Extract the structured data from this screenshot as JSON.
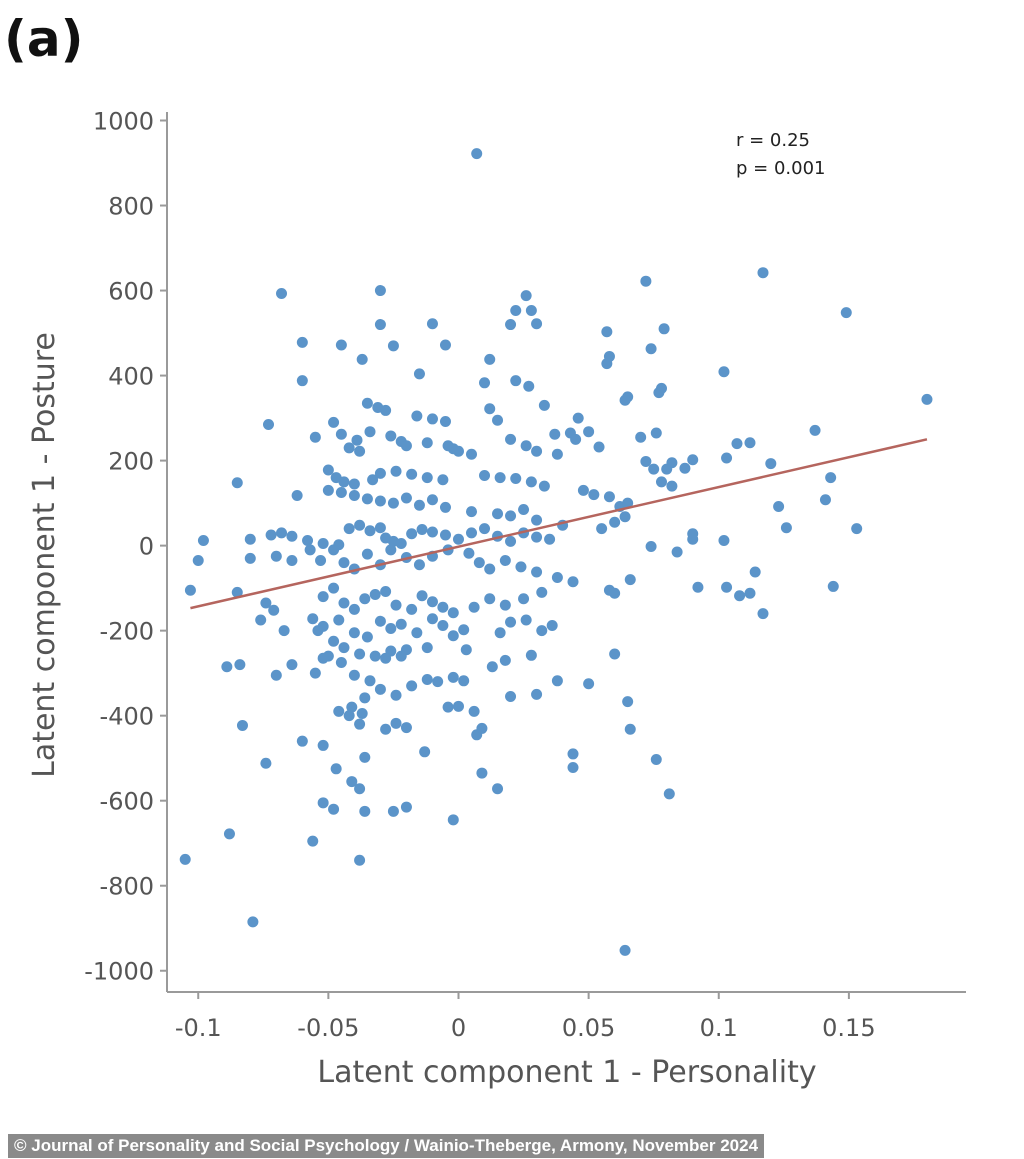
{
  "panel_label": "(a)",
  "credit": "© Journal of Personality and Social Psychology / Wainio-Theberge, Armony, November 2024",
  "chart_data": {
    "type": "scatter",
    "xlabel": "Latent component 1 - Personality",
    "ylabel": "Latent component 1 - Posture",
    "xlim": [
      -0.112,
      0.195
    ],
    "ylim": [
      -1050,
      1020
    ],
    "xticks": [
      -0.1,
      -0.05,
      0,
      0.05,
      0.1,
      0.15
    ],
    "xtick_labels": [
      "-0.1",
      "-0.05",
      "0",
      "0.05",
      "0.1",
      "0.15"
    ],
    "yticks": [
      1000,
      800,
      600,
      400,
      200,
      0,
      -200,
      -400,
      -600,
      -800,
      -1000
    ],
    "ytick_labels": [
      "1000",
      "800",
      "600",
      "400",
      "200",
      "0",
      "-200",
      "-400",
      "-600",
      "-800",
      "-1000"
    ],
    "grid": false,
    "annotation": [
      "r = 0.25",
      "p = 0.001"
    ],
    "point_color": "#5b94c9",
    "fit_line": {
      "color": "#b5655e",
      "x": [
        -0.103,
        0.18
      ],
      "y": [
        -147,
        250
      ]
    },
    "points": [
      [
        0.007,
        922
      ],
      [
        -0.068,
        593
      ],
      [
        0.072,
        622
      ],
      [
        0.117,
        642
      ],
      [
        0.149,
        548
      ],
      [
        0.18,
        344
      ],
      [
        0.026,
        588
      ],
      [
        0.022,
        553
      ],
      [
        0.028,
        553
      ],
      [
        0.03,
        522
      ],
      [
        0.02,
        520
      ],
      [
        -0.03,
        600
      ],
      [
        -0.01,
        522
      ],
      [
        -0.03,
        520
      ],
      [
        -0.06,
        478
      ],
      [
        -0.045,
        472
      ],
      [
        -0.005,
        472
      ],
      [
        0.057,
        503
      ],
      [
        0.079,
        510
      ],
      [
        0.074,
        463
      ],
      [
        0.058,
        445
      ],
      [
        0.057,
        428
      ],
      [
        -0.037,
        438
      ],
      [
        -0.025,
        470
      ],
      [
        -0.015,
        404
      ],
      [
        -0.06,
        388
      ],
      [
        0.012,
        438
      ],
      [
        0.022,
        388
      ],
      [
        0.102,
        409
      ],
      [
        0.065,
        350
      ],
      [
        0.078,
        370
      ],
      [
        0.077,
        360
      ],
      [
        0.01,
        383
      ],
      [
        0.027,
        375
      ],
      [
        0.046,
        300
      ],
      [
        0.037,
        262
      ],
      [
        0.043,
        265
      ],
      [
        0.05,
        268
      ],
      [
        0.045,
        250
      ],
      [
        0.064,
        342
      ],
      [
        0.012,
        322
      ],
      [
        0.015,
        295
      ],
      [
        0.033,
        330
      ],
      [
        -0.035,
        335
      ],
      [
        -0.031,
        325
      ],
      [
        -0.028,
        318
      ],
      [
        -0.016,
        305
      ],
      [
        -0.01,
        298
      ],
      [
        -0.005,
        292
      ],
      [
        -0.002,
        228
      ],
      [
        -0.048,
        290
      ],
      [
        -0.045,
        262
      ],
      [
        -0.039,
        248
      ],
      [
        -0.073,
        285
      ],
      [
        -0.055,
        255
      ],
      [
        -0.042,
        230
      ],
      [
        -0.038,
        222
      ],
      [
        -0.034,
        268
      ],
      [
        -0.026,
        258
      ],
      [
        -0.022,
        245
      ],
      [
        -0.02,
        235
      ],
      [
        -0.012,
        242
      ],
      [
        -0.004,
        235
      ],
      [
        0.0,
        222
      ],
      [
        0.005,
        215
      ],
      [
        0.02,
        250
      ],
      [
        0.026,
        235
      ],
      [
        0.03,
        222
      ],
      [
        0.038,
        215
      ],
      [
        0.054,
        232
      ],
      [
        0.07,
        255
      ],
      [
        0.076,
        265
      ],
      [
        0.072,
        198
      ],
      [
        0.082,
        195
      ],
      [
        0.087,
        182
      ],
      [
        0.09,
        202
      ],
      [
        0.103,
        206
      ],
      [
        0.107,
        240
      ],
      [
        0.112,
        242
      ],
      [
        0.137,
        271
      ],
      [
        0.12,
        193
      ],
      [
        0.143,
        160
      ],
      [
        0.078,
        150
      ],
      [
        0.082,
        140
      ],
      [
        0.075,
        180
      ],
      [
        0.08,
        180
      ],
      [
        -0.05,
        178
      ],
      [
        -0.047,
        160
      ],
      [
        -0.044,
        150
      ],
      [
        -0.04,
        145
      ],
      [
        -0.033,
        155
      ],
      [
        -0.03,
        170
      ],
      [
        -0.024,
        175
      ],
      [
        -0.018,
        168
      ],
      [
        -0.012,
        160
      ],
      [
        -0.006,
        155
      ],
      [
        0.01,
        165
      ],
      [
        0.016,
        160
      ],
      [
        0.022,
        158
      ],
      [
        0.028,
        150
      ],
      [
        0.033,
        140
      ],
      [
        -0.05,
        130
      ],
      [
        -0.045,
        125
      ],
      [
        -0.04,
        118
      ],
      [
        -0.035,
        110
      ],
      [
        -0.03,
        105
      ],
      [
        -0.025,
        100
      ],
      [
        -0.02,
        112
      ],
      [
        -0.015,
        95
      ],
      [
        -0.01,
        108
      ],
      [
        -0.005,
        90
      ],
      [
        0.005,
        80
      ],
      [
        0.015,
        75
      ],
      [
        0.02,
        70
      ],
      [
        0.025,
        85
      ],
      [
        0.03,
        60
      ],
      [
        0.048,
        130
      ],
      [
        0.052,
        120
      ],
      [
        0.058,
        115
      ],
      [
        0.062,
        92
      ],
      [
        0.065,
        100
      ],
      [
        -0.062,
        118
      ],
      [
        -0.085,
        148
      ],
      [
        0.123,
        92
      ],
      [
        0.141,
        108
      ],
      [
        0.126,
        42
      ],
      [
        0.153,
        40
      ],
      [
        0.09,
        15
      ],
      [
        0.09,
        28
      ],
      [
        0.102,
        12
      ],
      [
        -0.08,
        15
      ],
      [
        -0.072,
        25
      ],
      [
        -0.068,
        30
      ],
      [
        -0.064,
        22
      ],
      [
        -0.058,
        12
      ],
      [
        -0.052,
        5
      ],
      [
        -0.046,
        2
      ],
      [
        -0.042,
        40
      ],
      [
        -0.038,
        48
      ],
      [
        -0.034,
        35
      ],
      [
        -0.03,
        42
      ],
      [
        -0.028,
        18
      ],
      [
        -0.025,
        10
      ],
      [
        -0.022,
        5
      ],
      [
        -0.018,
        28
      ],
      [
        -0.014,
        38
      ],
      [
        -0.01,
        32
      ],
      [
        -0.005,
        25
      ],
      [
        0.0,
        15
      ],
      [
        0.005,
        30
      ],
      [
        0.01,
        40
      ],
      [
        0.015,
        22
      ],
      [
        0.02,
        10
      ],
      [
        0.025,
        30
      ],
      [
        0.03,
        20
      ],
      [
        0.035,
        15
      ],
      [
        0.04,
        48
      ],
      [
        0.055,
        40
      ],
      [
        0.06,
        55
      ],
      [
        0.064,
        68
      ],
      [
        0.074,
        -2
      ],
      [
        0.084,
        -15
      ],
      [
        -0.098,
        12
      ],
      [
        -0.1,
        -35
      ],
      [
        -0.08,
        -30
      ],
      [
        -0.07,
        -25
      ],
      [
        -0.064,
        -35
      ],
      [
        -0.057,
        -10
      ],
      [
        -0.053,
        -35
      ],
      [
        -0.048,
        -10
      ],
      [
        -0.044,
        -40
      ],
      [
        -0.04,
        -55
      ],
      [
        -0.035,
        -20
      ],
      [
        -0.03,
        -45
      ],
      [
        -0.026,
        -10
      ],
      [
        -0.02,
        -28
      ],
      [
        -0.015,
        -45
      ],
      [
        -0.01,
        -25
      ],
      [
        -0.004,
        -10
      ],
      [
        0.004,
        -18
      ],
      [
        0.008,
        -40
      ],
      [
        0.012,
        -55
      ],
      [
        0.018,
        -35
      ],
      [
        0.024,
        -50
      ],
      [
        0.03,
        -62
      ],
      [
        0.038,
        -75
      ],
      [
        0.044,
        -85
      ],
      [
        0.058,
        -105
      ],
      [
        0.06,
        -112
      ],
      [
        0.066,
        -80
      ],
      [
        -0.103,
        -105
      ],
      [
        -0.085,
        -110
      ],
      [
        0.092,
        -98
      ],
      [
        0.103,
        -98
      ],
      [
        0.108,
        -118
      ],
      [
        0.112,
        -112
      ],
      [
        0.114,
        -62
      ],
      [
        0.117,
        -160
      ],
      [
        0.144,
        -96
      ],
      [
        -0.052,
        -120
      ],
      [
        -0.048,
        -100
      ],
      [
        -0.044,
        -135
      ],
      [
        -0.04,
        -150
      ],
      [
        -0.036,
        -125
      ],
      [
        -0.032,
        -115
      ],
      [
        -0.028,
        -108
      ],
      [
        -0.024,
        -140
      ],
      [
        -0.018,
        -150
      ],
      [
        -0.014,
        -118
      ],
      [
        -0.01,
        -132
      ],
      [
        -0.006,
        -145
      ],
      [
        -0.002,
        -158
      ],
      [
        0.006,
        -145
      ],
      [
        0.012,
        -125
      ],
      [
        0.018,
        -140
      ],
      [
        0.025,
        -125
      ],
      [
        0.032,
        -110
      ],
      [
        -0.074,
        -135
      ],
      [
        -0.071,
        -152
      ],
      [
        -0.056,
        -172
      ],
      [
        -0.052,
        -190
      ],
      [
        -0.046,
        -175
      ],
      [
        -0.04,
        -205
      ],
      [
        -0.035,
        -215
      ],
      [
        -0.03,
        -178
      ],
      [
        -0.026,
        -195
      ],
      [
        -0.022,
        -185
      ],
      [
        -0.016,
        -205
      ],
      [
        -0.01,
        -172
      ],
      [
        -0.006,
        -188
      ],
      [
        -0.002,
        -212
      ],
      [
        0.002,
        -198
      ],
      [
        0.016,
        -205
      ],
      [
        0.02,
        -180
      ],
      [
        0.026,
        -175
      ],
      [
        0.032,
        -200
      ],
      [
        0.036,
        -188
      ],
      [
        -0.076,
        -175
      ],
      [
        -0.067,
        -200
      ],
      [
        -0.054,
        -200
      ],
      [
        -0.048,
        -225
      ],
      [
        -0.044,
        -240
      ],
      [
        -0.038,
        -255
      ],
      [
        -0.032,
        -260
      ],
      [
        -0.026,
        -248
      ],
      [
        -0.02,
        -245
      ],
      [
        -0.012,
        -240
      ],
      [
        0.003,
        -245
      ],
      [
        0.018,
        -270
      ],
      [
        0.028,
        -258
      ],
      [
        0.06,
        -255
      ],
      [
        -0.084,
        -280
      ],
      [
        -0.089,
        -285
      ],
      [
        -0.05,
        -260
      ],
      [
        -0.045,
        -275
      ],
      [
        -0.04,
        -305
      ],
      [
        -0.034,
        -318
      ],
      [
        -0.028,
        -265
      ],
      [
        -0.022,
        -260
      ],
      [
        -0.018,
        -330
      ],
      [
        -0.012,
        -315
      ],
      [
        -0.002,
        -310
      ],
      [
        0.002,
        -318
      ],
      [
        0.013,
        -285
      ],
      [
        0.03,
        -350
      ],
      [
        0.038,
        -318
      ],
      [
        0.05,
        -325
      ],
      [
        -0.07,
        -305
      ],
      [
        -0.064,
        -280
      ],
      [
        -0.055,
        -300
      ],
      [
        -0.052,
        -265
      ],
      [
        -0.036,
        -358
      ],
      [
        -0.03,
        -338
      ],
      [
        -0.024,
        -352
      ],
      [
        -0.008,
        -320
      ],
      [
        0.0,
        -378
      ],
      [
        0.006,
        -390
      ],
      [
        0.02,
        -355
      ],
      [
        -0.041,
        -380
      ],
      [
        -0.037,
        -395
      ],
      [
        -0.028,
        -432
      ],
      [
        -0.024,
        -418
      ],
      [
        -0.02,
        -428
      ],
      [
        -0.013,
        -485
      ],
      [
        -0.004,
        -380
      ],
      [
        0.007,
        -445
      ],
      [
        0.009,
        -430
      ],
      [
        -0.046,
        -390
      ],
      [
        -0.042,
        -400
      ],
      [
        -0.038,
        -420
      ],
      [
        -0.083,
        -423
      ],
      [
        0.065,
        -367
      ],
      [
        0.066,
        -432
      ],
      [
        0.044,
        -490
      ],
      [
        0.044,
        -522
      ],
      [
        0.076,
        -503
      ],
      [
        -0.06,
        -460
      ],
      [
        -0.052,
        -470
      ],
      [
        -0.047,
        -525
      ],
      [
        -0.041,
        -555
      ],
      [
        -0.038,
        -572
      ],
      [
        -0.036,
        -498
      ],
      [
        0.009,
        -535
      ],
      [
        0.015,
        -572
      ],
      [
        -0.074,
        -512
      ],
      [
        -0.052,
        -605
      ],
      [
        -0.048,
        -620
      ],
      [
        -0.036,
        -625
      ],
      [
        -0.025,
        -625
      ],
      [
        -0.02,
        -615
      ],
      [
        -0.002,
        -645
      ],
      [
        0.081,
        -584
      ],
      [
        -0.088,
        -678
      ],
      [
        -0.056,
        -695
      ],
      [
        -0.038,
        -740
      ],
      [
        -0.105,
        -738
      ],
      [
        -0.079,
        -885
      ],
      [
        0.064,
        -952
      ]
    ]
  }
}
